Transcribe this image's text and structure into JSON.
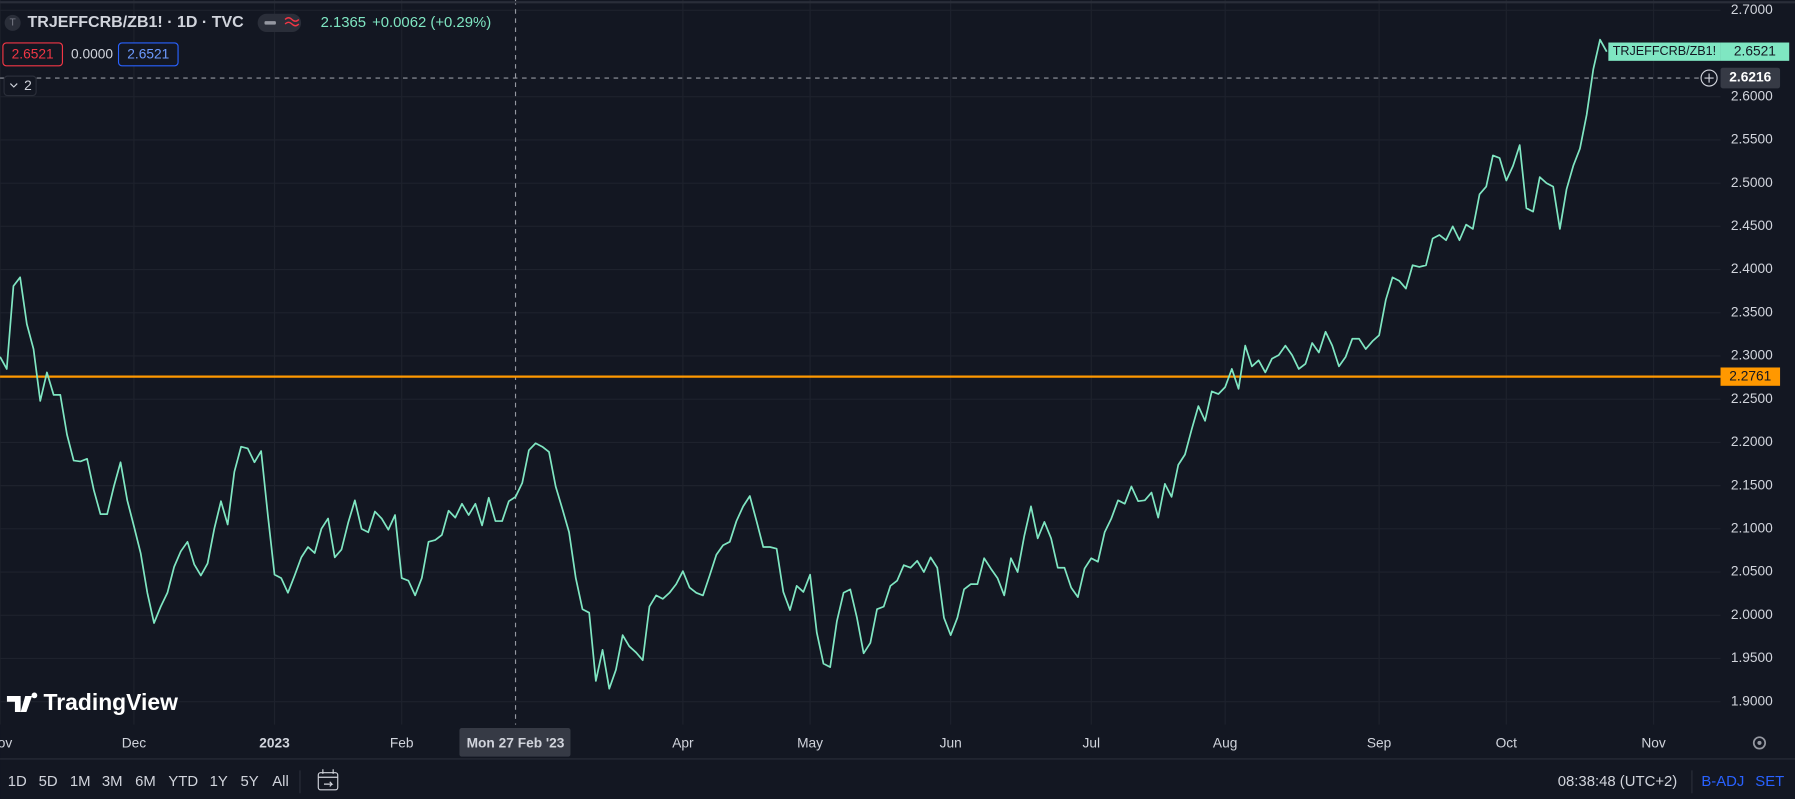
{
  "header": {
    "logo_letter": "T",
    "symbol": "TRJEFFCRB/ZB1! · 1D · TVC",
    "price": "2.1365",
    "change": "+0.0062 (+0.29%)",
    "inputs": [
      "2.6521",
      "0.0000",
      "2.6521"
    ],
    "collapse": "2"
  },
  "brand": "TradingView",
  "toolbar": {
    "ranges": [
      "1D",
      "5D",
      "1M",
      "3M",
      "6M",
      "YTD",
      "1Y",
      "5Y",
      "All"
    ],
    "time": "08:38:48 (UTC+2)",
    "adjust": "B-ADJ",
    "settings": "SET"
  },
  "chart_data": {
    "type": "line",
    "categories": [
      "Nov",
      null,
      null,
      null,
      null,
      null,
      null,
      null,
      null,
      null,
      null,
      null,
      null,
      null,
      null,
      null,
      null,
      null,
      null,
      null,
      "Dec",
      null,
      null,
      null,
      null,
      null,
      null,
      null,
      null,
      null,
      null,
      null,
      null,
      null,
      null,
      null,
      null,
      null,
      null,
      null,
      null,
      "2023",
      null,
      null,
      null,
      null,
      null,
      null,
      null,
      null,
      null,
      null,
      null,
      null,
      null,
      null,
      null,
      null,
      null,
      null,
      "Feb",
      null,
      null,
      null,
      null,
      null,
      null,
      null,
      null,
      null,
      null,
      null,
      null,
      null,
      null,
      null,
      null,
      "Mon 27 Feb '23",
      null,
      null,
      null,
      null,
      null,
      null,
      null,
      null,
      null,
      null,
      null,
      null,
      null,
      null,
      null,
      null,
      null,
      null,
      null,
      null,
      null,
      null,
      null,
      null,
      "Apr",
      null,
      null,
      null,
      null,
      null,
      null,
      null,
      null,
      null,
      null,
      null,
      null,
      null,
      null,
      null,
      null,
      null,
      null,
      "May",
      null,
      null,
      null,
      null,
      null,
      null,
      null,
      null,
      null,
      null,
      null,
      null,
      null,
      null,
      null,
      null,
      null,
      null,
      null,
      null,
      "Jun",
      null,
      null,
      null,
      null,
      null,
      null,
      null,
      null,
      null,
      null,
      null,
      null,
      null,
      null,
      null,
      null,
      null,
      null,
      null,
      null,
      "Jul",
      null,
      null,
      null,
      null,
      null,
      null,
      null,
      null,
      null,
      null,
      null,
      null,
      null,
      null,
      null,
      null,
      null,
      null,
      null,
      "Aug",
      null,
      null,
      null,
      null,
      null,
      null,
      null,
      null,
      null,
      null,
      null,
      null,
      null,
      null,
      null,
      null,
      null,
      null,
      null,
      null,
      null,
      null,
      "Sep",
      null,
      null,
      null,
      null,
      null,
      null,
      null,
      null,
      null,
      null,
      null,
      null,
      null,
      null,
      null,
      null,
      null,
      null,
      "Oct",
      null,
      null,
      null,
      null,
      null,
      null,
      null,
      null,
      null,
      null,
      null,
      null,
      null,
      null,
      null,
      null,
      null,
      null,
      null,
      null,
      null,
      "Nov",
      null,
      null,
      null,
      null,
      null,
      null,
      null,
      null,
      null,
      null
    ],
    "series": [
      {
        "name": "TRJEFFCRB/ZB1!",
        "color": "#7fe6c2",
        "values": [
          2.299,
          2.285,
          2.381,
          2.391,
          2.337,
          2.308,
          2.248,
          2.281,
          2.255,
          2.255,
          2.209,
          2.179,
          2.178,
          2.181,
          2.145,
          2.117,
          2.117,
          2.149,
          2.177,
          2.133,
          2.103,
          2.072,
          2.026,
          1.991,
          2.01,
          2.026,
          2.056,
          2.074,
          2.085,
          2.059,
          2.046,
          2.06,
          2.1,
          2.132,
          2.105,
          2.166,
          2.195,
          2.193,
          2.177,
          2.19,
          2.116,
          2.047,
          2.043,
          2.026,
          2.046,
          2.067,
          2.079,
          2.072,
          2.1,
          2.112,
          2.067,
          2.076,
          2.107,
          2.133,
          2.1,
          2.096,
          2.12,
          2.112,
          2.099,
          2.116,
          2.043,
          2.04,
          2.023,
          2.043,
          2.085,
          2.087,
          2.093,
          2.121,
          2.113,
          2.129,
          2.116,
          2.129,
          2.104,
          2.136,
          2.109,
          2.109,
          2.132,
          2.137,
          2.153,
          2.191,
          2.199,
          2.195,
          2.189,
          2.149,
          2.123,
          2.096,
          2.043,
          2.007,
          2.003,
          1.924,
          1.96,
          1.915,
          1.937,
          1.977,
          1.964,
          1.957,
          1.948,
          2.01,
          2.023,
          2.019,
          2.026,
          2.036,
          2.051,
          2.032,
          2.026,
          2.023,
          2.046,
          2.07,
          2.081,
          2.085,
          2.109,
          2.126,
          2.138,
          2.109,
          2.079,
          2.079,
          2.077,
          2.027,
          2.006,
          2.034,
          2.027,
          2.047,
          1.98,
          1.944,
          1.94,
          1.993,
          2.026,
          2.03,
          1.997,
          1.956,
          1.968,
          2.007,
          2.01,
          2.034,
          2.04,
          2.058,
          2.055,
          2.063,
          2.05,
          2.067,
          2.055,
          1.997,
          1.977,
          1.997,
          2.03,
          2.036,
          2.036,
          2.066,
          2.054,
          2.043,
          2.023,
          2.066,
          2.05,
          2.092,
          2.126,
          2.089,
          2.108,
          2.089,
          2.055,
          2.055,
          2.032,
          2.021,
          2.054,
          2.066,
          2.062,
          2.096,
          2.112,
          2.133,
          2.129,
          2.149,
          2.132,
          2.133,
          2.142,
          2.113,
          2.152,
          2.137,
          2.174,
          2.186,
          2.215,
          2.242,
          2.225,
          2.259,
          2.256,
          2.264,
          2.285,
          2.262,
          2.312,
          2.288,
          2.295,
          2.281,
          2.297,
          2.301,
          2.312,
          2.301,
          2.285,
          2.291,
          2.315,
          2.304,
          2.328,
          2.312,
          2.288,
          2.299,
          2.32,
          2.32,
          2.308,
          2.317,
          2.324,
          2.365,
          2.391,
          2.387,
          2.378,
          2.405,
          2.403,
          2.405,
          2.436,
          2.44,
          2.434,
          2.45,
          2.434,
          2.452,
          2.447,
          2.487,
          2.496,
          2.532,
          2.529,
          2.503,
          2.52,
          2.544,
          2.471,
          2.467,
          2.507,
          2.5,
          2.496,
          2.447,
          2.493,
          2.52,
          2.54,
          2.579,
          2.632,
          2.666,
          2.6521,
          null,
          null,
          null,
          null,
          null,
          null,
          null,
          null,
          null,
          null,
          null,
          null,
          null,
          null,
          null,
          null,
          null
        ]
      }
    ],
    "ylim": [
      1.8735,
      2.7119
    ],
    "yticks": [
      {
        "value": 2.7,
        "label": "2.7000"
      },
      {
        "value": 2.6,
        "label": "2.6000"
      },
      {
        "value": 2.55,
        "label": "2.5500"
      },
      {
        "value": 2.5,
        "label": "2.5000"
      },
      {
        "value": 2.45,
        "label": "2.4500"
      },
      {
        "value": 2.4,
        "label": "2.4000"
      },
      {
        "value": 2.35,
        "label": "2.3500"
      },
      {
        "value": 2.3,
        "label": "2.3000"
      },
      {
        "value": 2.25,
        "label": "2.2500"
      },
      {
        "value": 2.2,
        "label": "2.2000"
      },
      {
        "value": 2.15,
        "label": "2.1500"
      },
      {
        "value": 2.1,
        "label": "2.1000"
      },
      {
        "value": 2.05,
        "label": "2.0500"
      },
      {
        "value": 2.0,
        "label": "2.0000"
      },
      {
        "value": 1.95,
        "label": "1.9500"
      },
      {
        "value": 1.9,
        "label": "1.9000"
      }
    ],
    "grid": true,
    "price_lines": [
      {
        "value": 2.2761,
        "label": "2.2761",
        "color": "#ff9800"
      }
    ],
    "crosshair": {
      "x": "Mon 27 Feb '23",
      "y": 2.6216
    }
  }
}
